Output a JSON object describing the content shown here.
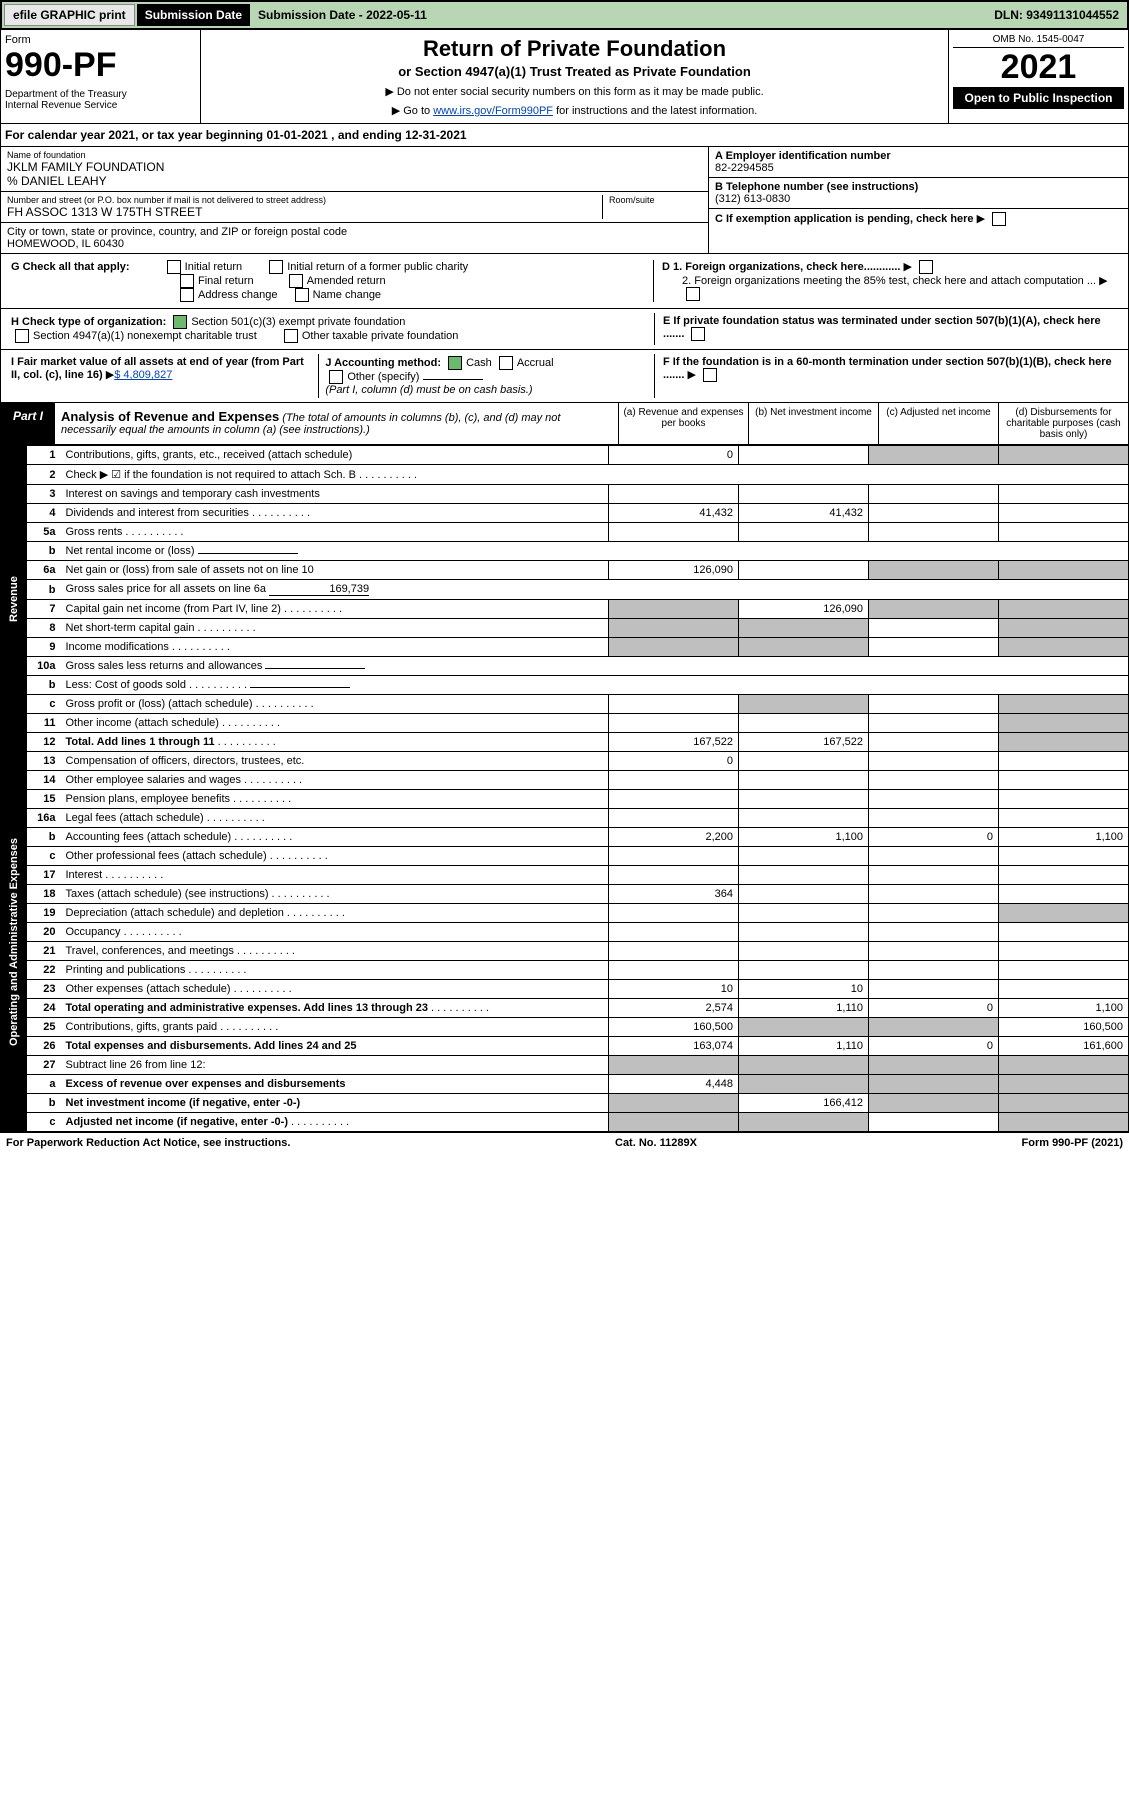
{
  "top": {
    "efile": "efile GRAPHIC print",
    "sub_label": "Submission Date - 2022-05-11",
    "dln": "DLN: 93491131044552"
  },
  "header": {
    "form_label": "Form",
    "form_num": "990-PF",
    "dept": "Department of the Treasury\nInternal Revenue Service",
    "title": "Return of Private Foundation",
    "subtitle": "or Section 4947(a)(1) Trust Treated as Private Foundation",
    "note1": "▶ Do not enter social security numbers on this form as it may be made public.",
    "note2_pre": "▶ Go to ",
    "note2_link": "www.irs.gov/Form990PF",
    "note2_post": " for instructions and the latest information.",
    "omb": "OMB No. 1545-0047",
    "year": "2021",
    "open": "Open to Public Inspection"
  },
  "cal": "For calendar year 2021, or tax year beginning 01-01-2021                , and ending 12-31-2021",
  "info": {
    "name_lbl": "Name of foundation",
    "name": "JKLM FAMILY FOUNDATION",
    "care": "% DANIEL LEAHY",
    "addr_lbl": "Number and street (or P.O. box number if mail is not delivered to street address)",
    "addr": "FH ASSOC 1313 W 175TH STREET",
    "room_lbl": "Room/suite",
    "city_lbl": "City or town, state or province, country, and ZIP or foreign postal code",
    "city": "HOMEWOOD, IL  60430",
    "ein_lbl": "A Employer identification number",
    "ein": "82-2294585",
    "phone_lbl": "B Telephone number (see instructions)",
    "phone": "(312) 613-0830",
    "c": "C If exemption application is pending, check here",
    "d1": "D 1. Foreign organizations, check here............",
    "d2": "2. Foreign organizations meeting the 85% test, check here and attach computation ...",
    "e": "E  If private foundation status was terminated under section 507(b)(1)(A), check here .......",
    "f": "F  If the foundation is in a 60-month termination under section 507(b)(1)(B), check here .......",
    "g_lbl": "G Check all that apply:",
    "g_opts": [
      "Initial return",
      "Final return",
      "Address change",
      "Initial return of a former public charity",
      "Amended return",
      "Name change"
    ],
    "h_lbl": "H Check type of organization:",
    "h1": "Section 501(c)(3) exempt private foundation",
    "h2": "Section 4947(a)(1) nonexempt charitable trust",
    "h3": "Other taxable private foundation",
    "i_lbl": "I Fair market value of all assets at end of year (from Part II, col. (c), line 16)",
    "i_val": "$  4,809,827",
    "j_lbl": "J Accounting method:",
    "j_cash": "Cash",
    "j_accrual": "Accrual",
    "j_other": "Other (specify)",
    "j_note": "(Part I, column (d) must be on cash basis.)"
  },
  "part1": {
    "label": "Part I",
    "title": "Analysis of Revenue and Expenses",
    "subtitle": "(The total of amounts in columns (b), (c), and (d) may not necessarily equal the amounts in column (a) (see instructions).)",
    "col_a": "(a)   Revenue and expenses per books",
    "col_b": "(b)   Net investment income",
    "col_c": "(c)   Adjusted net income",
    "col_d": "(d)   Disbursements for charitable purposes (cash basis only)"
  },
  "side": {
    "rev": "Revenue",
    "exp": "Operating and Administrative Expenses"
  },
  "rows": [
    {
      "n": "1",
      "d": "Contributions, gifts, grants, etc., received (attach schedule)",
      "a": "0",
      "b": "",
      "c": "g",
      "dd": "g"
    },
    {
      "n": "2",
      "d": "Check ▶ ☑ if the foundation is not required to attach Sch. B",
      "dots": true,
      "noabcd": true
    },
    {
      "n": "3",
      "d": "Interest on savings and temporary cash investments"
    },
    {
      "n": "4",
      "d": "Dividends and interest from securities",
      "dots": true,
      "a": "41,432",
      "b": "41,432"
    },
    {
      "n": "5a",
      "d": "Gross rents",
      "dots": true
    },
    {
      "n": "b",
      "d": "Net rental income or (loss)",
      "noabcd": true,
      "under": true
    },
    {
      "n": "6a",
      "d": "Net gain or (loss) from sale of assets not on line 10",
      "a": "126,090",
      "c": "g",
      "dd": "g"
    },
    {
      "n": "b",
      "d": "Gross sales price for all assets on line 6a",
      "inline": "169,739",
      "noabcd": true
    },
    {
      "n": "7",
      "d": "Capital gain net income (from Part IV, line 2)",
      "dots": true,
      "a": "g",
      "b": "126,090",
      "c": "g",
      "dd": "g"
    },
    {
      "n": "8",
      "d": "Net short-term capital gain",
      "dots": true,
      "a": "g",
      "b": "g",
      "dd": "g"
    },
    {
      "n": "9",
      "d": "Income modifications",
      "dots": true,
      "a": "g",
      "b": "g",
      "dd": "g"
    },
    {
      "n": "10a",
      "d": "Gross sales less returns and allowances",
      "noabcd": true,
      "under": true
    },
    {
      "n": "b",
      "d": "Less: Cost of goods sold",
      "dots": true,
      "noabcd": true,
      "under": true
    },
    {
      "n": "c",
      "d": "Gross profit or (loss) (attach schedule)",
      "dots": true,
      "b": "g",
      "dd": "g"
    },
    {
      "n": "11",
      "d": "Other income (attach schedule)",
      "dots": true,
      "dd": "g"
    },
    {
      "n": "12",
      "d": "Total. Add lines 1 through 11",
      "dots": true,
      "bold": true,
      "a": "167,522",
      "b": "167,522",
      "dd": "g"
    },
    {
      "n": "13",
      "d": "Compensation of officers, directors, trustees, etc.",
      "a": "0"
    },
    {
      "n": "14",
      "d": "Other employee salaries and wages",
      "dots": true
    },
    {
      "n": "15",
      "d": "Pension plans, employee benefits",
      "dots": true
    },
    {
      "n": "16a",
      "d": "Legal fees (attach schedule)",
      "dots": true
    },
    {
      "n": "b",
      "d": "Accounting fees (attach schedule)",
      "dots": true,
      "a": "2,200",
      "b": "1,100",
      "c": "0",
      "dd": "1,100"
    },
    {
      "n": "c",
      "d": "Other professional fees (attach schedule)",
      "dots": true
    },
    {
      "n": "17",
      "d": "Interest",
      "dots": true
    },
    {
      "n": "18",
      "d": "Taxes (attach schedule) (see instructions)",
      "dots": true,
      "a": "364"
    },
    {
      "n": "19",
      "d": "Depreciation (attach schedule) and depletion",
      "dots": true,
      "dd": "g"
    },
    {
      "n": "20",
      "d": "Occupancy",
      "dots": true
    },
    {
      "n": "21",
      "d": "Travel, conferences, and meetings",
      "dots": true
    },
    {
      "n": "22",
      "d": "Printing and publications",
      "dots": true
    },
    {
      "n": "23",
      "d": "Other expenses (attach schedule)",
      "dots": true,
      "a": "10",
      "b": "10"
    },
    {
      "n": "24",
      "d": "Total operating and administrative expenses. Add lines 13 through 23",
      "dots": true,
      "bold": true,
      "a": "2,574",
      "b": "1,110",
      "c": "0",
      "dd": "1,100"
    },
    {
      "n": "25",
      "d": "Contributions, gifts, grants paid",
      "dots": true,
      "a": "160,500",
      "b": "g",
      "c": "g",
      "dd": "160,500"
    },
    {
      "n": "26",
      "d": "Total expenses and disbursements. Add lines 24 and 25",
      "bold": true,
      "a": "163,074",
      "b": "1,110",
      "c": "0",
      "dd": "161,600"
    },
    {
      "n": "27",
      "d": "Subtract line 26 from line 12:",
      "a": "g",
      "b": "g",
      "c": "g",
      "dd": "g"
    },
    {
      "n": "a",
      "d": "Excess of revenue over expenses and disbursements",
      "bold": true,
      "a": "4,448",
      "b": "g",
      "c": "g",
      "dd": "g"
    },
    {
      "n": "b",
      "d": "Net investment income (if negative, enter -0-)",
      "bold": true,
      "a": "g",
      "b": "166,412",
      "c": "g",
      "dd": "g"
    },
    {
      "n": "c",
      "d": "Adjusted net income (if negative, enter -0-)",
      "dots": true,
      "bold": true,
      "a": "g",
      "b": "g",
      "dd": "g"
    }
  ],
  "footer": {
    "left": "For Paperwork Reduction Act Notice, see instructions.",
    "mid": "Cat. No. 11289X",
    "right": "Form 990-PF (2021)"
  }
}
